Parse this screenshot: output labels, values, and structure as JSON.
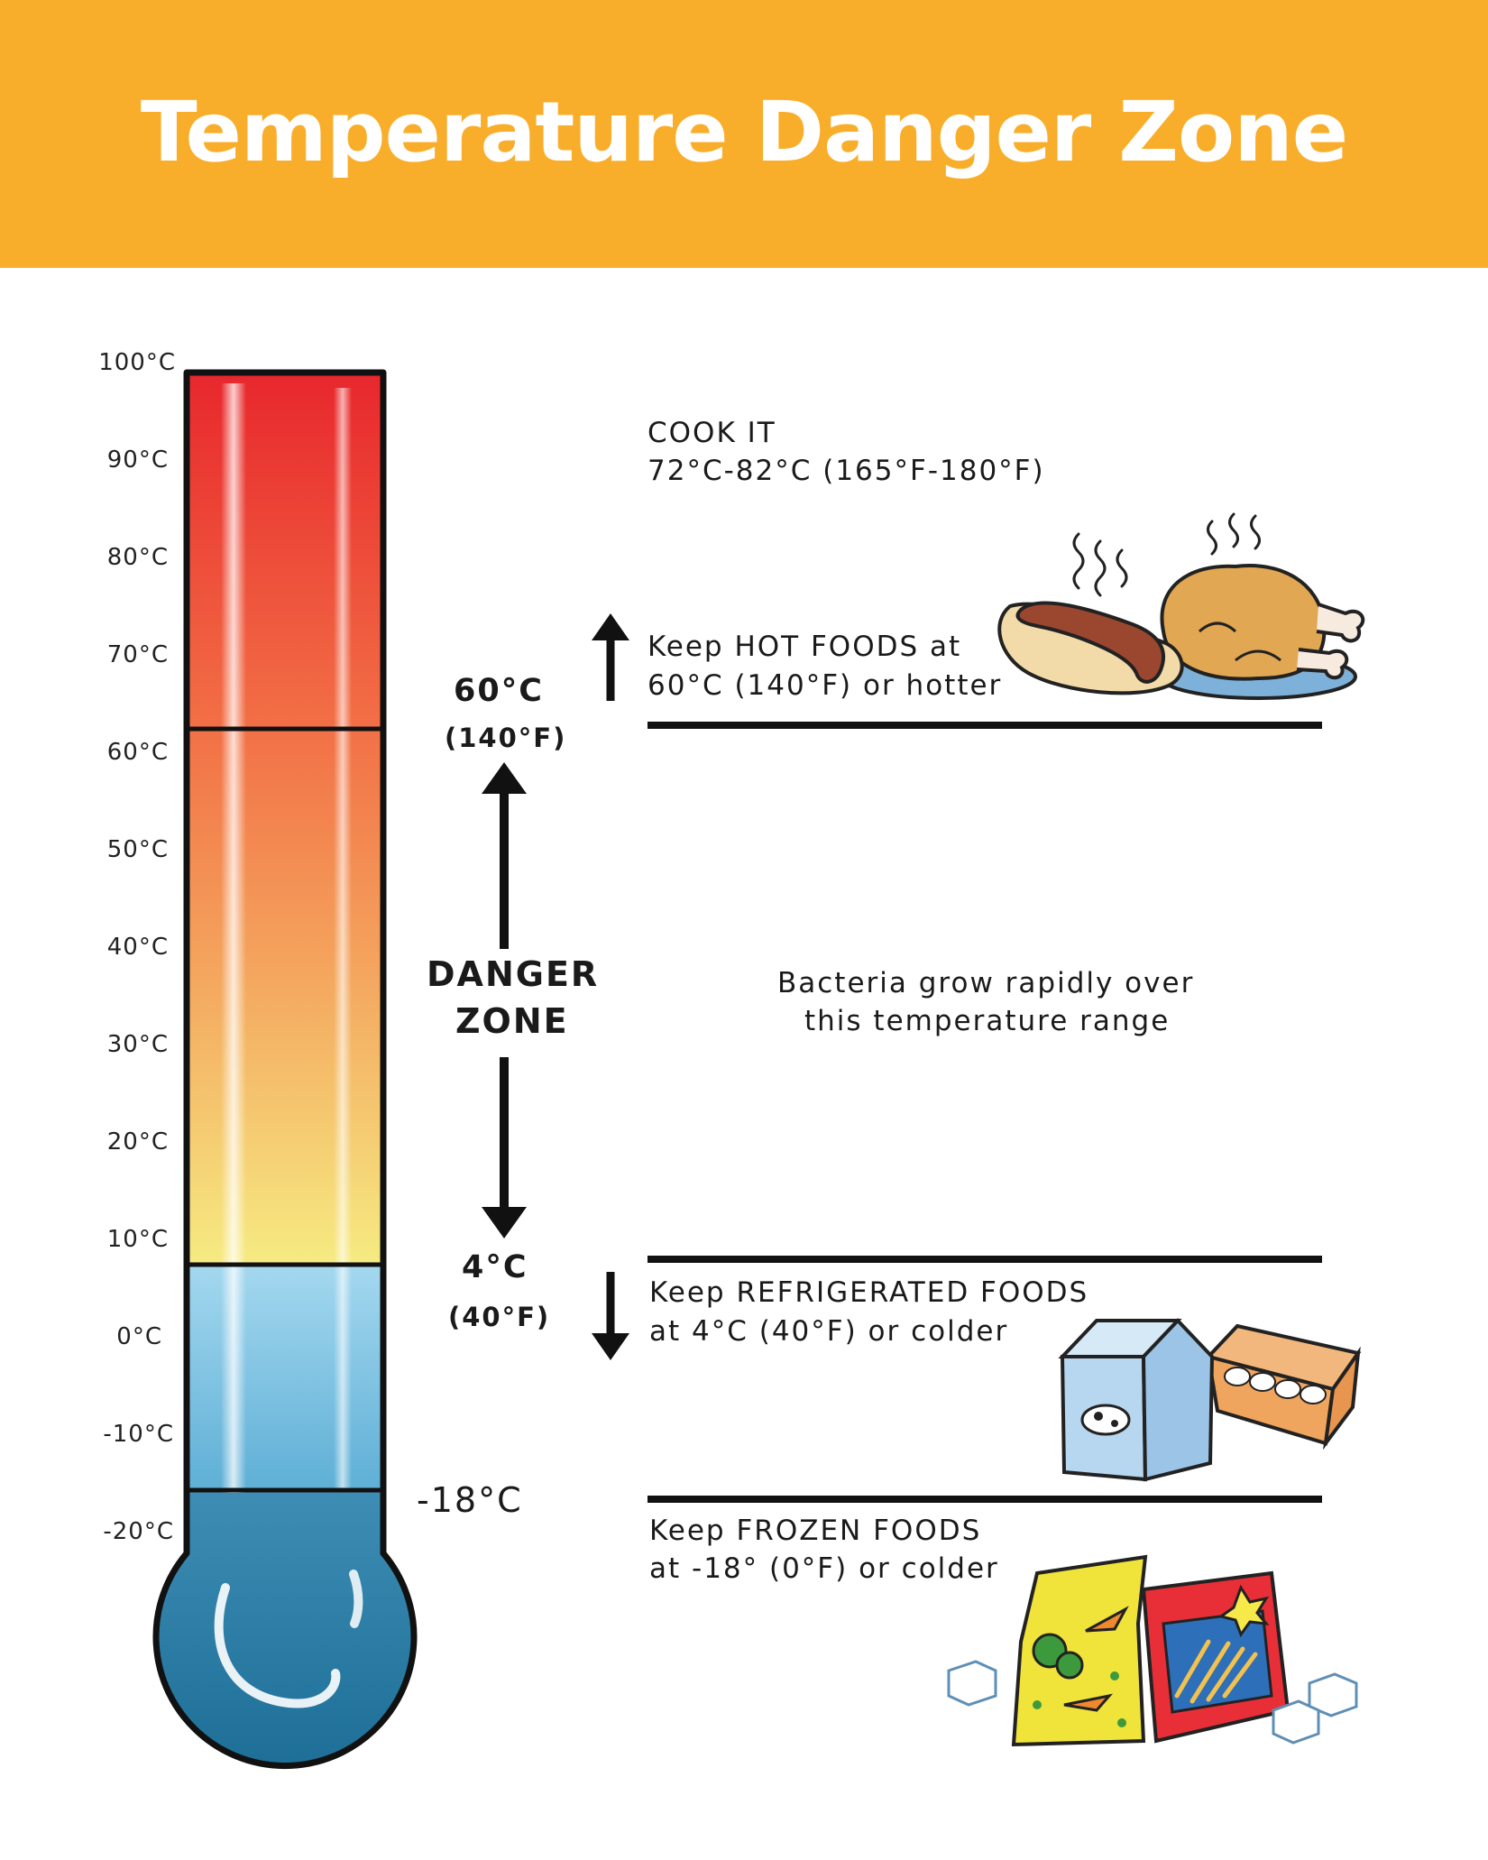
{
  "header": {
    "title": "Temperature Danger Zone"
  },
  "colors": {
    "banner": "#F9AE2B",
    "hot_red": "#E8272D",
    "warm_orange": "#F39A55",
    "warm_yellow": "#F6EB82",
    "cold_light_blue": "#A4D8EF",
    "cold_dark_blue": "#2D7BA0"
  },
  "thermometer": {
    "scale_labels": [
      "100°C",
      "90°C",
      "80°C",
      "70°C",
      "60°C",
      "50°C",
      "40°C",
      "30°C",
      "20°C",
      "10°C",
      "0°C",
      "-10°C",
      "-20°C"
    ]
  },
  "danger_zone": {
    "upper_c": "60°C",
    "upper_f": "(140°F)",
    "label_line1": "DANGER",
    "label_line2": "ZONE",
    "lower_c": "4°C",
    "lower_f": "(40°F)",
    "frozen_mark": "-18°C",
    "bacteria_line1": "Bacteria grow rapidly over",
    "bacteria_line2": "this temperature range"
  },
  "cook": {
    "line1": "COOK IT",
    "line2": "72°C-82°C (165°F-180°F)"
  },
  "hot": {
    "line1": "Keep HOT FOODS at",
    "line2": "60°C (140°F) or hotter"
  },
  "refrigerated": {
    "line1": "Keep REFRIGERATED FOODS",
    "line2": "at 4°C (40°F) or colder"
  },
  "frozen": {
    "line1": "Keep FROZEN FOODS",
    "line2": "at -18° (0°F) or colder"
  },
  "illustrations": {
    "hot": [
      "hot-dog-icon",
      "roast-chicken-icon",
      "steam-icon"
    ],
    "cold": [
      "milk-carton-icon",
      "egg-carton-icon"
    ],
    "frozen": [
      "frozen-vegetables-bag-icon",
      "frozen-fries-bag-icon",
      "ice-cube-icon"
    ]
  }
}
